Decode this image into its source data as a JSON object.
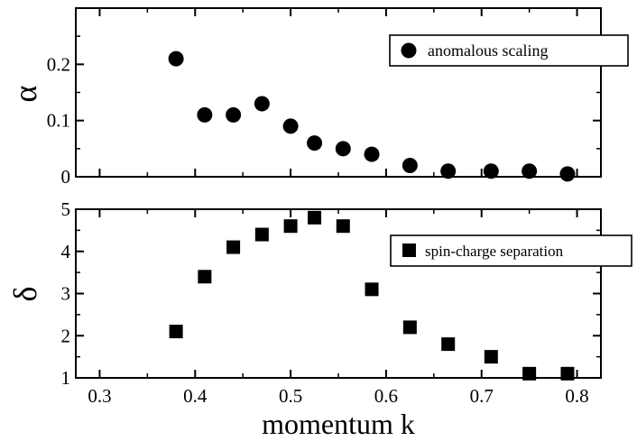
{
  "chart_data": [
    {
      "type": "scatter",
      "panel": "top",
      "ylabel": "α",
      "xlabel": "",
      "xlim": [
        0.275,
        0.825
      ],
      "ylim": [
        0,
        0.3
      ],
      "yticks": [
        0,
        0.1,
        0.2
      ],
      "ytick_labels": [
        "0",
        "0.1",
        "0.2"
      ],
      "marker": "circle",
      "legend_position": "top-right",
      "series": [
        {
          "name": "anomalous scaling",
          "points": [
            {
              "x": 0.38,
              "y": 0.21
            },
            {
              "x": 0.41,
              "y": 0.11
            },
            {
              "x": 0.44,
              "y": 0.11
            },
            {
              "x": 0.47,
              "y": 0.13
            },
            {
              "x": 0.5,
              "y": 0.09
            },
            {
              "x": 0.525,
              "y": 0.06
            },
            {
              "x": 0.555,
              "y": 0.05
            },
            {
              "x": 0.585,
              "y": 0.04
            },
            {
              "x": 0.625,
              "y": 0.02
            },
            {
              "x": 0.665,
              "y": 0.01
            },
            {
              "x": 0.71,
              "y": 0.01
            },
            {
              "x": 0.75,
              "y": 0.01
            },
            {
              "x": 0.79,
              "y": 0.005
            }
          ]
        }
      ]
    },
    {
      "type": "scatter",
      "panel": "bottom",
      "ylabel": "δ",
      "xlabel": "momentum k",
      "xlim": [
        0.275,
        0.825
      ],
      "ylim": [
        1,
        5
      ],
      "xticks": [
        0.3,
        0.4,
        0.5,
        0.6,
        0.7,
        0.8
      ],
      "xtick_labels": [
        "0.3",
        "0.4",
        "0.5",
        "0.6",
        "0.7",
        "0.8"
      ],
      "yticks": [
        1,
        2,
        3,
        4,
        5
      ],
      "ytick_labels": [
        "1",
        "2",
        "3",
        "4",
        "5"
      ],
      "marker": "square",
      "legend_position": "top-right",
      "series": [
        {
          "name": "spin-charge separation",
          "points": [
            {
              "x": 0.38,
              "y": 2.1
            },
            {
              "x": 0.41,
              "y": 3.4
            },
            {
              "x": 0.44,
              "y": 4.1
            },
            {
              "x": 0.47,
              "y": 4.4
            },
            {
              "x": 0.5,
              "y": 4.6
            },
            {
              "x": 0.525,
              "y": 4.8
            },
            {
              "x": 0.555,
              "y": 4.6
            },
            {
              "x": 0.585,
              "y": 3.1
            },
            {
              "x": 0.625,
              "y": 2.2
            },
            {
              "x": 0.665,
              "y": 1.8
            },
            {
              "x": 0.71,
              "y": 1.5
            },
            {
              "x": 0.75,
              "y": 1.1
            },
            {
              "x": 0.79,
              "y": 1.1
            }
          ]
        }
      ]
    }
  ]
}
